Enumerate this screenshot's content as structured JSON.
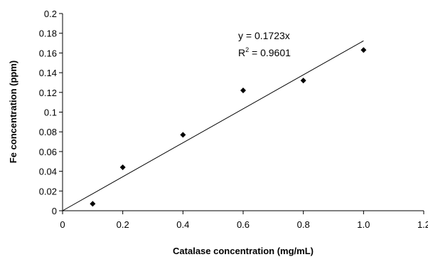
{
  "chart_data": {
    "type": "scatter",
    "xlabel": "Catalase concentration (mg/mL)",
    "ylabel": "Fe concentration (ppm)",
    "xlim": [
      0,
      1.2
    ],
    "ylim": [
      0,
      0.2
    ],
    "x_ticks": [
      "0",
      "0.2",
      "0.4",
      "0.6",
      "0.8",
      "1.0",
      "1.2"
    ],
    "y_ticks": [
      "0",
      "0.02",
      "0.04",
      "0.06",
      "0.08",
      "0.1",
      "0.12",
      "0.14",
      "0.16",
      "0.18",
      "0.2"
    ],
    "grid": false,
    "legend": "none",
    "series": [
      {
        "marker": "diamond",
        "color": "#000000",
        "x": [
          0.1,
          0.2,
          0.4,
          0.6,
          0.8,
          1.0
        ],
        "y": [
          0.007,
          0.044,
          0.077,
          0.122,
          0.132,
          0.163
        ]
      }
    ],
    "trendline": {
      "type": "linear",
      "slope": 0.1723,
      "intercept": 0,
      "x_range": [
        0,
        1.0
      ]
    },
    "annotations": {
      "equation": "y = 0.1723x",
      "r2_prefix": "R",
      "r2_sup": "2",
      "r2_suffix": " = 0.9601"
    }
  }
}
